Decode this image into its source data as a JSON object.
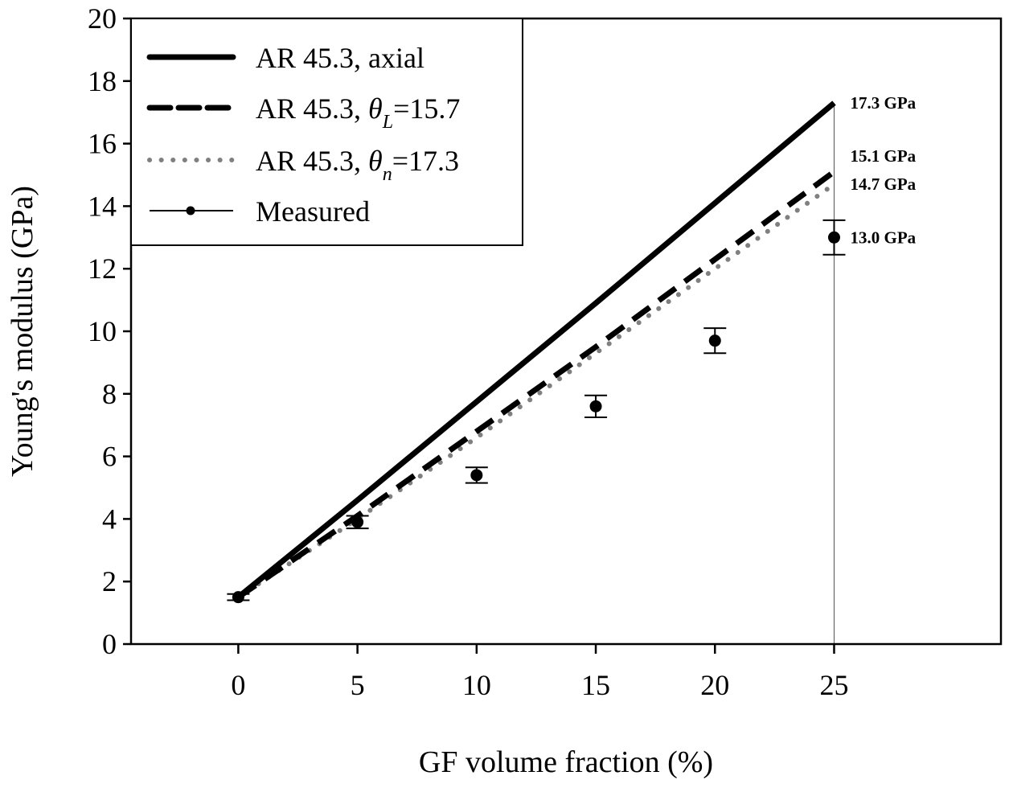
{
  "chart_data": {
    "type": "line",
    "title": "",
    "xlabel": "GF volume fraction (%)",
    "ylabel": "Young's modulus (GPa)",
    "xlim": [
      -4.5,
      32
    ],
    "ylim": [
      0,
      20
    ],
    "xticks": [
      0,
      5,
      10,
      15,
      20,
      25
    ],
    "yticks": [
      0,
      2,
      4,
      6,
      8,
      10,
      12,
      14,
      16,
      18,
      20
    ],
    "grid": false,
    "legend_position": "top-left",
    "series": [
      {
        "name": "AR 45.3, axial",
        "legend_prefix": "AR 45.3, axial",
        "style": "solid",
        "color": "#000000",
        "x": [
          0,
          5,
          10,
          15,
          20,
          25
        ],
        "y": [
          1.5,
          4.6,
          7.75,
          10.9,
          14.1,
          17.3
        ]
      },
      {
        "name": "AR 45.3, θL=15.7",
        "legend_prefix": "AR 45.3, ",
        "legend_symbol": "θ",
        "legend_sub": "L",
        "legend_suffix": "=15.7",
        "style": "dashed",
        "color": "#000000",
        "x": [
          0,
          5,
          10,
          15,
          20,
          25
        ],
        "y": [
          1.5,
          4.1,
          6.8,
          9.5,
          12.3,
          15.1
        ]
      },
      {
        "name": "AR 45.3, θn=17.3",
        "legend_prefix": "AR 45.3, ",
        "legend_symbol": "θ",
        "legend_sub": "n",
        "legend_suffix": "=17.3",
        "style": "dotted",
        "color": "#808080",
        "x": [
          0,
          5,
          10,
          15,
          20,
          25
        ],
        "y": [
          1.5,
          4.0,
          6.6,
          9.3,
          12.0,
          14.7
        ]
      },
      {
        "name": "Measured",
        "legend_prefix": "Measured",
        "style": "points",
        "color": "#000000",
        "x": [
          0,
          5,
          10,
          15,
          20,
          25
        ],
        "y": [
          1.5,
          3.9,
          5.4,
          7.6,
          9.7,
          13.0
        ],
        "err": [
          0.1,
          0.2,
          0.25,
          0.35,
          0.4,
          0.55
        ]
      }
    ],
    "annotations": [
      {
        "text": "17.3 GPa",
        "x": 25,
        "y": 17.3
      },
      {
        "text": "15.1 GPa",
        "x": 25,
        "y": 15.6
      },
      {
        "text": "14.7 GPa",
        "x": 25,
        "y": 14.7
      },
      {
        "text": "13.0 GPa",
        "x": 25,
        "y": 13.0
      }
    ],
    "reference_line_x": 25
  }
}
